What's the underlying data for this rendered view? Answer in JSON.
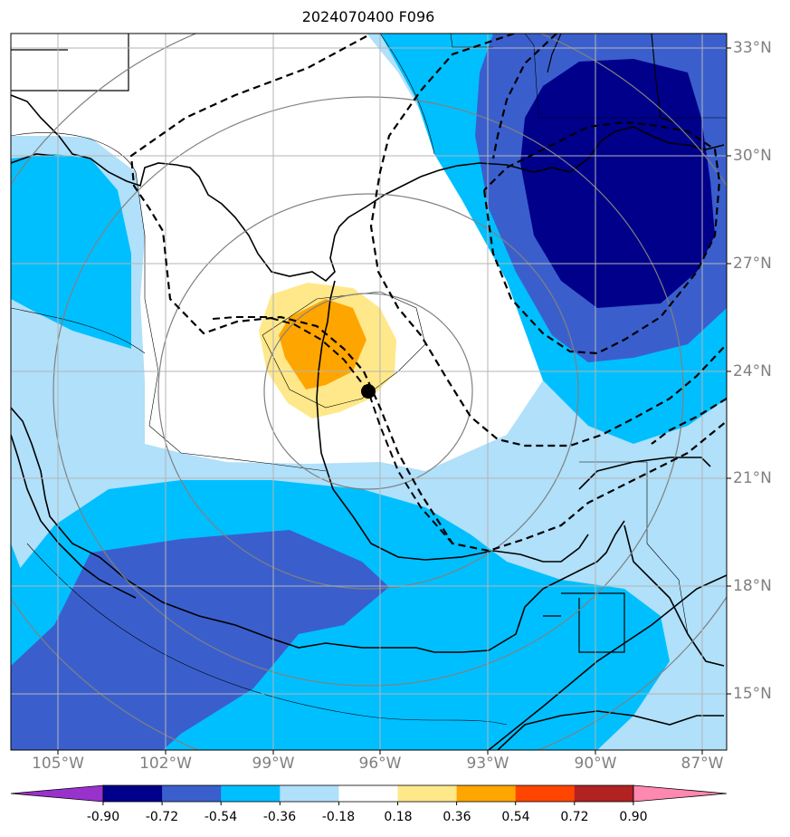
{
  "title": "2024070400 F096",
  "lat_labels": [
    {
      "text": "33°N",
      "lat": 33
    },
    {
      "text": "30°N",
      "lat": 30
    },
    {
      "text": "27°N",
      "lat": 27
    },
    {
      "text": "24°N",
      "lat": 24
    },
    {
      "text": "21°N",
      "lat": 21
    },
    {
      "text": "18°N",
      "lat": 18
    },
    {
      "text": "15°N",
      "lat": 15
    }
  ],
  "lon_labels": [
    {
      "text": "105°W",
      "lon": -105
    },
    {
      "text": "102°W",
      "lon": -102
    },
    {
      "text": "99°W",
      "lon": -99
    },
    {
      "text": "96°W",
      "lon": -96
    },
    {
      "text": "93°W",
      "lon": -93
    },
    {
      "text": "90°W",
      "lon": -90
    },
    {
      "text": "87°W",
      "lon": -87
    }
  ],
  "colorbar": {
    "levels": [
      "-0.90",
      "-0.72",
      "-0.54",
      "-0.36",
      "-0.18",
      "0.18",
      "0.36",
      "0.54",
      "0.72",
      "0.90"
    ],
    "colors": [
      "#9932cc",
      "#00008b",
      "#3a5fcd",
      "#00bfff",
      "#b0e0fa",
      "#ffffff",
      "#ffe88a",
      "#ffa500",
      "#ff4500",
      "#b22222",
      "#ff88b0"
    ]
  },
  "storm_center": {
    "lat": 23.5,
    "lon": -96.3
  },
  "colors": {
    "darkblue": "#00008b",
    "midblue": "#3a5fcd",
    "blue": "#00bfff",
    "lightblue": "#b0e0fa",
    "yellow": "#ffe88a",
    "orange": "#ffa500",
    "grid": "#b4b4b4",
    "range_rings": "#808080"
  }
}
